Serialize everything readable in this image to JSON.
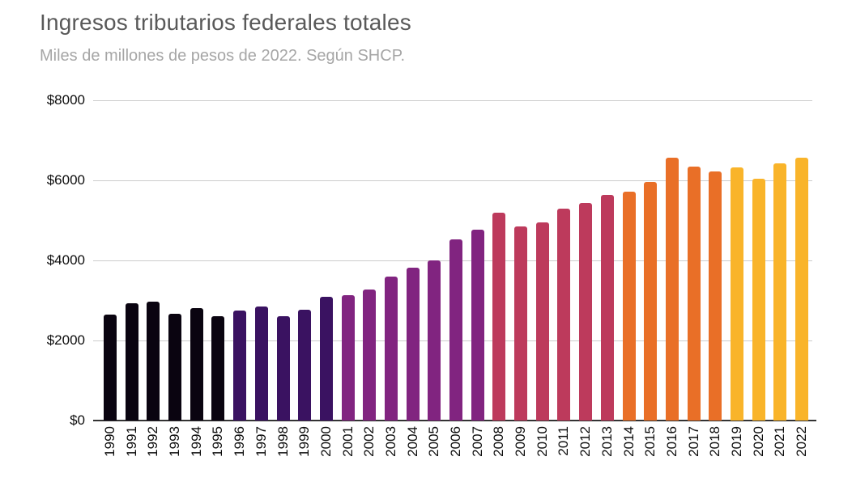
{
  "header": {
    "title": "Ingresos tributarios federales totales",
    "subtitle": "Miles de millones de pesos de 2022. Según SHCP."
  },
  "chart_data": {
    "type": "bar",
    "title": "Ingresos tributarios federales totales",
    "subtitle": "Miles de millones de pesos de 2022. Según SHCP.",
    "categories": [
      "1990",
      "1991",
      "1992",
      "1993",
      "1994",
      "1995",
      "1996",
      "1997",
      "1998",
      "1999",
      "2000",
      "2001",
      "2002",
      "2003",
      "2004",
      "2005",
      "2006",
      "2007",
      "2008",
      "2009",
      "2010",
      "2011",
      "2012",
      "2013",
      "2014",
      "2015",
      "2016",
      "2017",
      "2018",
      "2019",
      "2020",
      "2021",
      "2022"
    ],
    "values": [
      2640,
      2930,
      2960,
      2660,
      2810,
      2610,
      2740,
      2850,
      2605,
      2760,
      3100,
      3130,
      3265,
      3600,
      3820,
      4005,
      4520,
      4760,
      5200,
      4850,
      4950,
      5285,
      5435,
      5635,
      5725,
      5950,
      6565,
      6345,
      6230,
      6330,
      6045,
      6430,
      6565
    ],
    "color_groups": [
      {
        "start": 1990,
        "end": 1995,
        "color": "#0a0410"
      },
      {
        "start": 1996,
        "end": 2000,
        "color": "#3a1261"
      },
      {
        "start": 2001,
        "end": 2007,
        "color": "#812480"
      },
      {
        "start": 2008,
        "end": 2013,
        "color": "#bd3a5c"
      },
      {
        "start": 2014,
        "end": 2018,
        "color": "#e96f27"
      },
      {
        "start": 2019,
        "end": 2022,
        "color": "#f9b42a"
      }
    ],
    "xlabel": "",
    "ylabel": "",
    "ylim": [
      0,
      8000
    ],
    "ytick_values": [
      0,
      2000,
      4000,
      6000,
      8000
    ],
    "ytick_labels": [
      "$0",
      "$2000",
      "$4000",
      "$6000",
      "$8000"
    ],
    "grid": "horizontal",
    "legend": "none"
  },
  "style": {
    "title_color": "#595959",
    "subtitle_color": "#a6a6a6",
    "grid_color": "#cccccc",
    "axis_color": "#333333",
    "tick_label_color": "#0d0d0d",
    "background": "#ffffff"
  }
}
